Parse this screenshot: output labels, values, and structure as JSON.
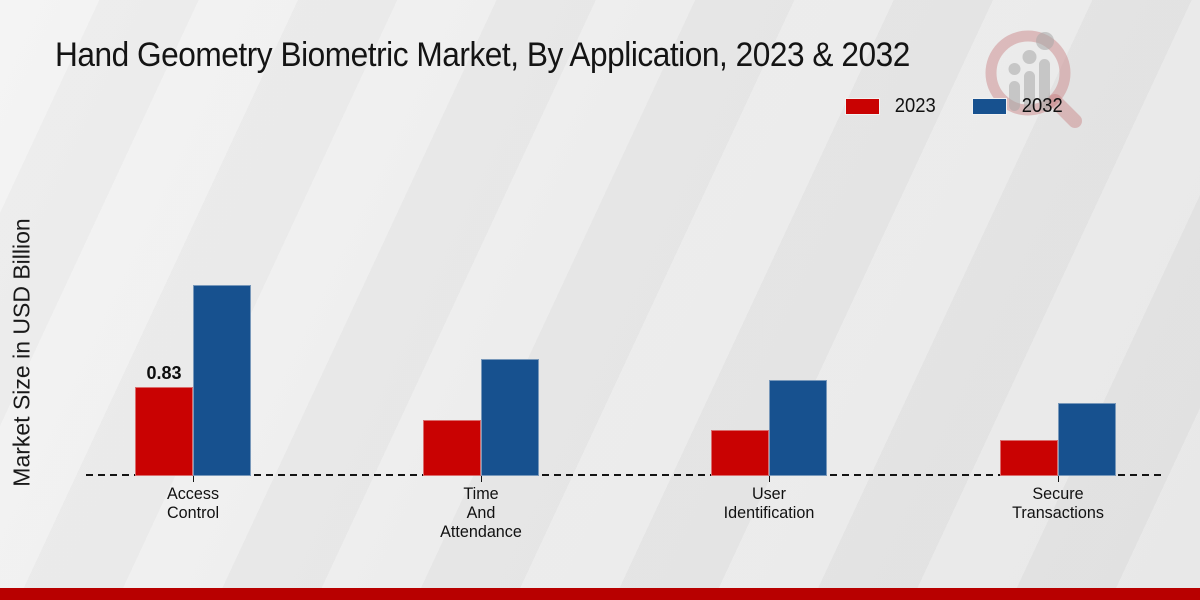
{
  "header": {
    "title": "Hand Geometry Biometric Market, By Application, 2023 & 2032"
  },
  "y_axis_label": "Market Size in USD Billion",
  "legend": {
    "items": [
      {
        "label": "2023",
        "color": "#c90202"
      },
      {
        "label": "2032",
        "color": "#17518f"
      }
    ]
  },
  "branding": {
    "logo_icon": "magnifier-growth-chart-watermark",
    "ring_color": "rgba(198,118,122,0.42)",
    "bars_color": "rgba(168,168,168,0.5)"
  },
  "footer": {
    "bar_color": "#b80000"
  },
  "chart_data": {
    "type": "bar",
    "title": "Hand Geometry Biometric Market, By Application, 2023 & 2032",
    "xlabel": "",
    "ylabel": "Market Size in USD Billion",
    "categories": [
      "Access Control",
      "Time And Attendance",
      "User Identification",
      "Secure Transactions"
    ],
    "series": [
      {
        "name": "2023",
        "color": "#c90202",
        "values": [
          0.83,
          0.52,
          0.43,
          0.34
        ]
      },
      {
        "name": "2032",
        "color": "#17518f",
        "values": [
          1.78,
          1.09,
          0.9,
          0.68
        ]
      }
    ],
    "annotations": [
      {
        "series": "2023",
        "category_index": 0,
        "text": "0.83"
      }
    ],
    "ylim": [
      0,
      2
    ],
    "grid": false,
    "legend_position": "top-right",
    "baseline_style": "dashed"
  }
}
